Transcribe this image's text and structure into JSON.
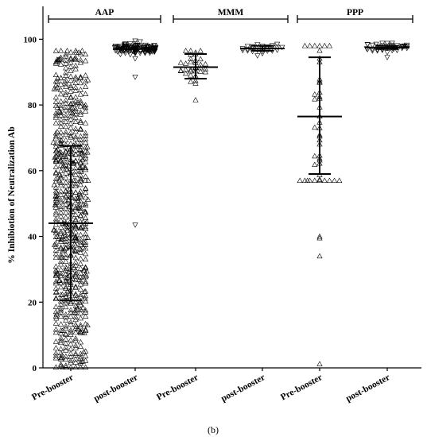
{
  "chart_data": {
    "type": "scatter",
    "ylabel": "% Inhibiotion of Neutralization Ab",
    "caption": "(b)",
    "ylim": [
      0,
      110
    ],
    "yticks": [
      0,
      20,
      40,
      60,
      80,
      100
    ],
    "categories": [
      "Pre-booster",
      "post-booster",
      "Pre-booster",
      "post-booster",
      "Pre-booster",
      "post-booster"
    ],
    "groups": [
      {
        "label": "AAP",
        "categories": [
          0,
          1
        ]
      },
      {
        "label": "MMM",
        "categories": [
          2,
          3
        ]
      },
      {
        "label": "PPP",
        "categories": [
          4,
          5
        ]
      }
    ],
    "series": [
      {
        "category": 0,
        "marker": "triangle-up",
        "mean": 44,
        "sd_low": 20.5,
        "sd_high": 67.5,
        "n": 700,
        "min": 0.2,
        "max": 96.5
      },
      {
        "category": 1,
        "marker": "triangle-down",
        "mean": 97,
        "sd_low": 97,
        "sd_high": 97,
        "n": 130,
        "min": 88.5,
        "max": 99.5,
        "outliers": [
          43.5
        ]
      },
      {
        "category": 2,
        "marker": "triangle-up",
        "mean": 91.5,
        "sd_low": 88,
        "sd_high": 95.5,
        "n": 32,
        "min": 81.5,
        "max": 96.5
      },
      {
        "category": 3,
        "marker": "triangle-down",
        "mean": 97.2,
        "sd_low": 96.5,
        "sd_high": 98,
        "n": 24,
        "min": 95,
        "max": 98.5
      },
      {
        "category": 4,
        "marker": "triangle-up",
        "mean": 76.5,
        "sd_low": 59,
        "sd_high": 94.5,
        "n": 42,
        "min": 57,
        "max": 98,
        "outliers": [
          40,
          39.5,
          34,
          1.2
        ]
      },
      {
        "category": 5,
        "marker": "triangle-down",
        "mean": 97.5,
        "sd_low": 97,
        "sd_high": 98,
        "n": 36,
        "min": 94.5,
        "max": 98.8
      }
    ]
  }
}
